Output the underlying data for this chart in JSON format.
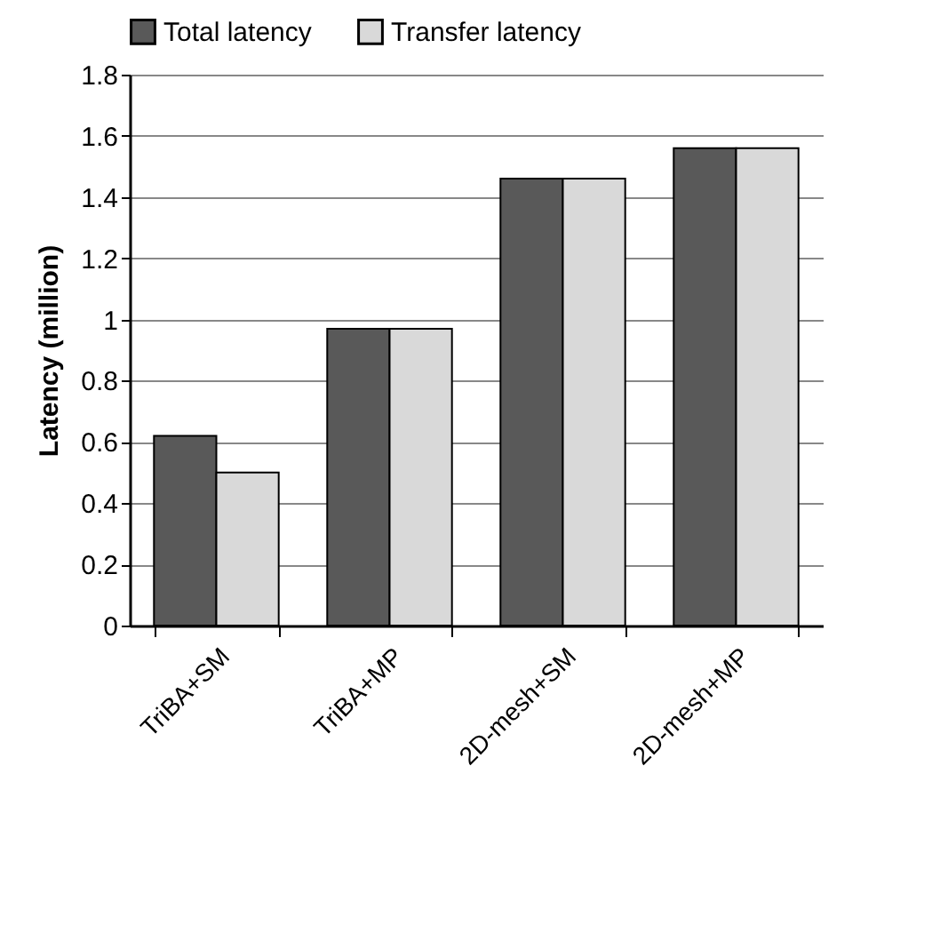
{
  "chart_data": {
    "type": "bar",
    "ylabel": "Latency (million)",
    "categories": [
      "TriBA+SM",
      "TriBA+MP",
      "2D-mesh+SM",
      "2D-mesh+MP"
    ],
    "series": [
      {
        "name": "Total latency",
        "color": "#595959",
        "values": [
          0.62,
          0.97,
          1.46,
          1.56
        ]
      },
      {
        "name": "Transfer latency",
        "color": "#d9d9d9",
        "values": [
          0.5,
          0.97,
          1.46,
          1.56
        ]
      }
    ],
    "ylim": [
      0,
      1.8
    ],
    "yticks": [
      0,
      0.2,
      0.4,
      0.6,
      0.8,
      1,
      1.2,
      1.4,
      1.6,
      1.8
    ],
    "grid": "y",
    "legend": "top"
  }
}
